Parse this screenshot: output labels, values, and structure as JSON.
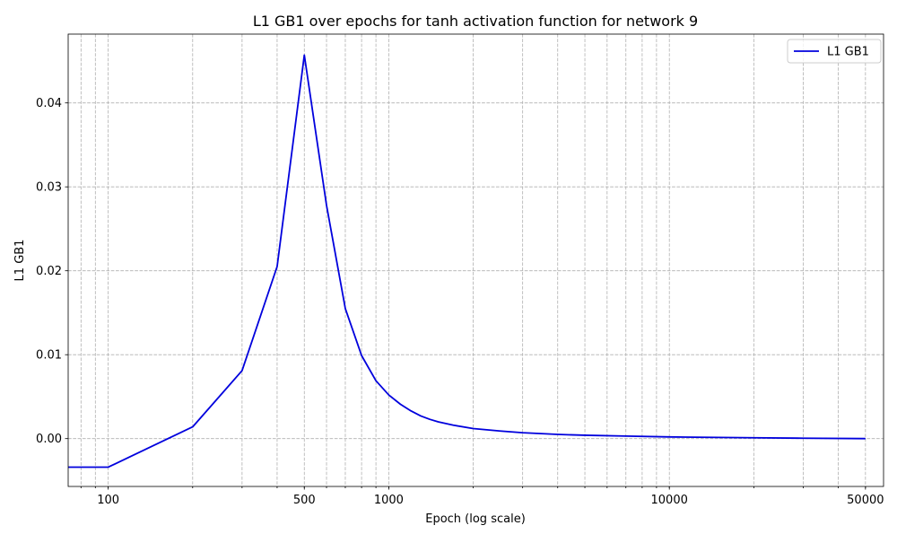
{
  "chart_data": {
    "type": "line",
    "title": "L1 GB1 over epochs for tanh activation function for network 9",
    "xlabel": "Epoch (log scale)",
    "ylabel": "L1 GB1",
    "xscale": "log",
    "xlim": [
      72,
      58000
    ],
    "ylim": [
      -0.0057,
      0.0482
    ],
    "x_ticks": [
      100,
      500,
      1000,
      10000,
      50000
    ],
    "x_tick_labels": [
      "100",
      "500",
      "1000",
      "10000",
      "50000"
    ],
    "y_ticks": [
      0.0,
      0.01,
      0.02,
      0.03,
      0.04
    ],
    "y_tick_labels": [
      "0.00",
      "0.01",
      "0.02",
      "0.03",
      "0.04"
    ],
    "grid": true,
    "legend_position": "top-right",
    "series": [
      {
        "name": "L1 GB1",
        "color": "#0000dd",
        "x": [
          1,
          100,
          200,
          300,
          400,
          500,
          600,
          700,
          800,
          900,
          1000,
          1100,
          1200,
          1300,
          1400,
          1500,
          1700,
          2000,
          2500,
          3000,
          4000,
          5000,
          7000,
          10000,
          20000,
          30000,
          50000
        ],
        "y": [
          -0.0034,
          -0.0034,
          0.0014,
          0.0081,
          0.0205,
          0.0457,
          0.0278,
          0.0155,
          0.0099,
          0.0069,
          0.0052,
          0.0041,
          0.0033,
          0.0027,
          0.0023,
          0.002,
          0.0016,
          0.0012,
          0.0009,
          0.0007,
          0.0005,
          0.0004,
          0.0003,
          0.0002,
          0.0001,
          5e-05,
          0.0
        ]
      }
    ]
  }
}
